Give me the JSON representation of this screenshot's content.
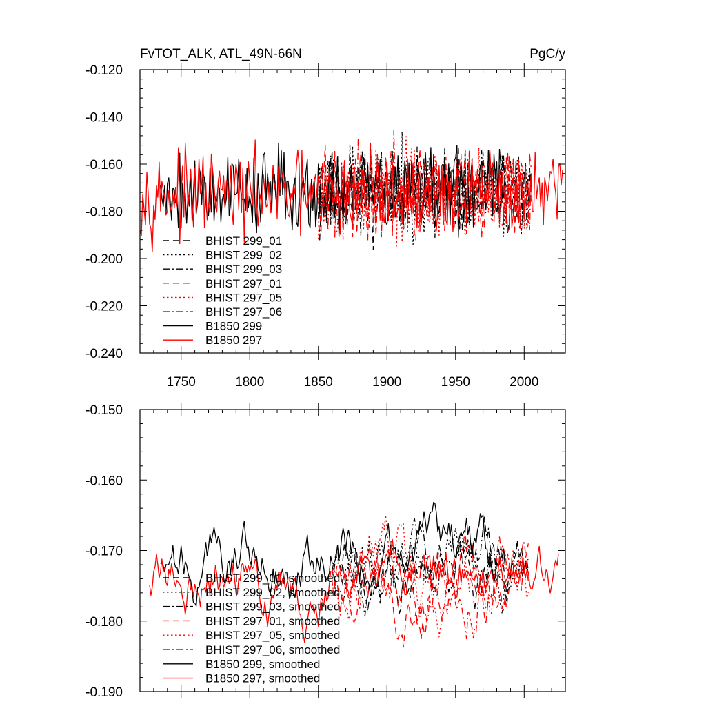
{
  "chart_data": [
    {
      "type": "line",
      "title": "FvTOT_ALK, ATL_49N-66N",
      "units": "PgC/y",
      "xlim": [
        1720,
        2030
      ],
      "ylim": [
        -0.24,
        -0.12
      ],
      "xticks": [
        1750,
        1800,
        1850,
        1900,
        1950,
        2000
      ],
      "xtick_labels": [
        "1750",
        "1800",
        "1850",
        "1900",
        "1950",
        "2000"
      ],
      "yticks": [
        -0.12,
        -0.14,
        -0.16,
        -0.18,
        -0.2,
        -0.22,
        -0.24
      ],
      "ytick_labels": [
        "-0.120",
        "-0.140",
        "-0.160",
        "-0.180",
        "-0.200",
        "-0.220",
        "-0.240"
      ],
      "legend": "bottom-left",
      "series": [
        {
          "name": "BHIST 299_01",
          "color": "#000000",
          "dash": "dashed",
          "start": 1850,
          "end": 2005,
          "mean": -0.172,
          "amp": 0.014,
          "seed": 11
        },
        {
          "name": "BHIST 299_02",
          "color": "#000000",
          "dash": "dotted",
          "start": 1850,
          "end": 2005,
          "mean": -0.171,
          "amp": 0.014,
          "seed": 23
        },
        {
          "name": "BHIST 299_03",
          "color": "#000000",
          "dash": "dashdot",
          "start": 1850,
          "end": 2005,
          "mean": -0.172,
          "amp": 0.014,
          "seed": 37
        },
        {
          "name": "BHIST 297_01",
          "color": "#ff0000",
          "dash": "dashed",
          "start": 1850,
          "end": 2005,
          "mean": -0.172,
          "amp": 0.015,
          "seed": 41
        },
        {
          "name": "BHIST 297_05",
          "color": "#ff0000",
          "dash": "dotted",
          "start": 1850,
          "end": 2005,
          "mean": -0.172,
          "amp": 0.015,
          "seed": 53
        },
        {
          "name": "BHIST 297_06",
          "color": "#ff0000",
          "dash": "dashdot",
          "start": 1850,
          "end": 2005,
          "mean": -0.171,
          "amp": 0.015,
          "seed": 67
        },
        {
          "name": "B1850 299",
          "color": "#000000",
          "dash": "solid",
          "start": 1735,
          "end": 1986,
          "mean": -0.171,
          "amp": 0.014,
          "seed": 79
        },
        {
          "name": "B1850 297",
          "color": "#ff0000",
          "dash": "solid",
          "start": 1720,
          "end": 2028,
          "mean": -0.173,
          "amp": 0.013,
          "seed": 97
        }
      ]
    },
    {
      "type": "line",
      "title": "",
      "units": "",
      "xlim": [
        1720,
        2030
      ],
      "ylim": [
        -0.19,
        -0.15
      ],
      "xticks": [
        1750,
        1800,
        1850,
        1900,
        1950,
        2000
      ],
      "xtick_labels": [],
      "yticks": [
        -0.15,
        -0.16,
        -0.17,
        -0.18,
        -0.19
      ],
      "ytick_labels": [
        "-0.150",
        "-0.160",
        "-0.170",
        "-0.180",
        "-0.190"
      ],
      "legend": "bottom-left",
      "series": [
        {
          "name": "BHIST 299_01, smoothed",
          "color": "#000000",
          "dash": "dashed",
          "start": 1860,
          "end": 2003,
          "mean": -0.172,
          "amp": 0.005,
          "smooth": true,
          "seed": 111
        },
        {
          "name": "BHIST 299_02, smoothed",
          "color": "#000000",
          "dash": "dotted",
          "start": 1860,
          "end": 2003,
          "mean": -0.172,
          "amp": 0.005,
          "smooth": true,
          "seed": 123
        },
        {
          "name": "BHIST 299_03, smoothed",
          "color": "#000000",
          "dash": "dashdot",
          "start": 1860,
          "end": 2003,
          "mean": -0.172,
          "amp": 0.005,
          "smooth": true,
          "seed": 137
        },
        {
          "name": "BHIST 297_01, smoothed",
          "color": "#ff0000",
          "dash": "dashed",
          "start": 1860,
          "end": 2003,
          "mean": -0.173,
          "amp": 0.006,
          "smooth": true,
          "seed": 141
        },
        {
          "name": "BHIST 297_05, smoothed",
          "color": "#ff0000",
          "dash": "dotted",
          "start": 1860,
          "end": 2003,
          "mean": -0.173,
          "amp": 0.006,
          "smooth": true,
          "seed": 153
        },
        {
          "name": "BHIST 297_06, smoothed",
          "color": "#ff0000",
          "dash": "dashdot",
          "start": 1860,
          "end": 2003,
          "mean": -0.172,
          "amp": 0.006,
          "smooth": true,
          "seed": 167
        },
        {
          "name": "B1850 299, smoothed",
          "color": "#000000",
          "dash": "solid",
          "start": 1735,
          "end": 1986,
          "mean": -0.171,
          "amp": 0.005,
          "smooth": true,
          "seed": 179
        },
        {
          "name": "B1850 297, smoothed",
          "color": "#ff0000",
          "dash": "solid",
          "start": 1727,
          "end": 2025,
          "mean": -0.174,
          "amp": 0.005,
          "smooth": true,
          "seed": 197
        }
      ]
    }
  ]
}
